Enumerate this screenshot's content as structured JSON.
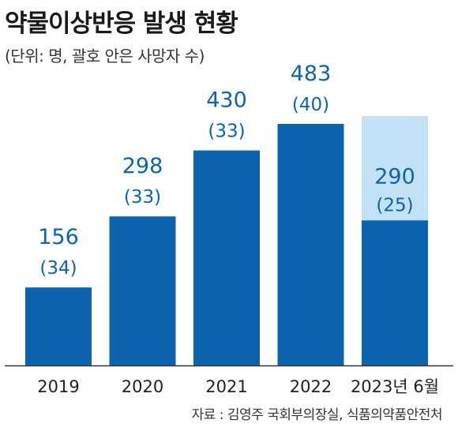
{
  "chart_data": {
    "type": "bar",
    "title": "약물이상반응 발생 현황",
    "subtitle": "(단위: 명, 괄호 안은 사망자 수)",
    "source": "자료 : 김영주 국회부의장실, 식품의약품안전처",
    "categories": [
      "2019",
      "2020",
      "2021",
      "2022",
      "2023년 6월"
    ],
    "series": [
      {
        "values": [
          156,
          298,
          430,
          483,
          290
        ]
      }
    ],
    "deaths": [
      34,
      33,
      33,
      40,
      25
    ],
    "deaths_labels": [
      "(34)",
      "(33)",
      "(33)",
      "(40)",
      "(25)"
    ],
    "ylim": [
      0,
      483
    ],
    "grid": false,
    "highlight_last_background": true
  },
  "colors": {
    "bar": "#0d64ae",
    "bar_highlight_bg": "#c3e2f5",
    "label_outside": "#0d64ae",
    "label_inside": "#ffffff",
    "axis": "#333333"
  }
}
